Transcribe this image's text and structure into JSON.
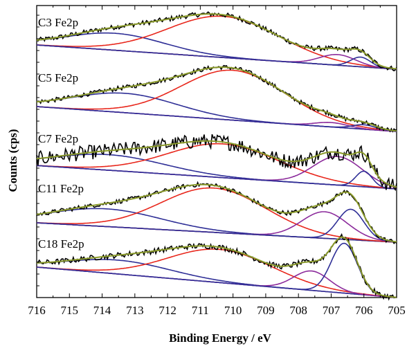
{
  "chart_data": {
    "type": "line",
    "xlabel": "Binding Energy / eV",
    "ylabel": "Counts (cps)",
    "xlim": [
      716,
      705
    ],
    "x_reversed": true,
    "x_ticks": [
      "716",
      "715",
      "714",
      "713",
      "712",
      "711",
      "710",
      "709",
      "708",
      "707",
      "706",
      "705"
    ],
    "y_tick_labels_shown": false,
    "grid": false,
    "legend": "none",
    "colors": {
      "raw": "#000000",
      "envelope": "#8a9a2a",
      "main_peak": "#e8261b",
      "satellite": "#2e2e96",
      "secondary": "#8b2a9b",
      "background_dark": "#7a1010",
      "background_purple": "#7b2a8a"
    },
    "panels": [
      {
        "label": "C3 Fe2p",
        "background": {
          "color": "background_dark",
          "y_start": 0.5,
          "y_end": 0.0
        },
        "components": [
          {
            "role": "satellite",
            "center": 713.6,
            "height": 0.35,
            "width": 1.5
          },
          {
            "role": "main_peak",
            "center": 710.3,
            "height": 0.85,
            "width": 1.7
          },
          {
            "role": "secondary",
            "center": 706.8,
            "height": 0.22,
            "width": 0.55
          },
          {
            "role": "satellite",
            "center": 706.1,
            "height": 0.2,
            "width": 0.3
          }
        ]
      },
      {
        "label": "C5 Fe2p",
        "background": {
          "color": "background_purple",
          "y_start": 0.45,
          "y_end": 0.0
        },
        "components": [
          {
            "role": "satellite",
            "center": 713.3,
            "height": 0.35,
            "width": 1.6
          },
          {
            "role": "main_peak",
            "center": 710.0,
            "height": 0.9,
            "width": 1.6
          },
          {
            "role": "secondary",
            "center": 707.0,
            "height": 0.08,
            "width": 0.5
          },
          {
            "role": "satellite",
            "center": 706.0,
            "height": 0.08,
            "width": 0.35
          }
        ]
      },
      {
        "label": "C7 Fe2p",
        "background": {
          "color": "background_purple",
          "y_start": 0.45,
          "y_end": 0.0
        },
        "components": [
          {
            "role": "satellite",
            "center": 713.8,
            "height": 0.3,
            "width": 1.7
          },
          {
            "role": "main_peak",
            "center": 710.3,
            "height": 0.65,
            "width": 1.7
          },
          {
            "role": "secondary",
            "center": 706.8,
            "height": 0.55,
            "width": 0.75
          },
          {
            "role": "satellite",
            "center": 706.0,
            "height": 0.3,
            "width": 0.25
          }
        ]
      },
      {
        "label": "C11 Fe2p",
        "background": {
          "color": "background_dark",
          "y_start": 0.35,
          "y_end": 0.0
        },
        "components": [
          {
            "role": "satellite",
            "center": 713.9,
            "height": 0.32,
            "width": 1.7
          },
          {
            "role": "main_peak",
            "center": 710.6,
            "height": 0.8,
            "width": 1.6
          },
          {
            "role": "secondary",
            "center": 707.2,
            "height": 0.48,
            "width": 0.7
          },
          {
            "role": "satellite",
            "center": 706.4,
            "height": 0.55,
            "width": 0.4
          }
        ]
      },
      {
        "label": "C18 Fe2p",
        "background": {
          "color": "background_purple",
          "y_start": 0.55,
          "y_end": 0.0
        },
        "components": [
          {
            "role": "satellite",
            "center": 713.5,
            "height": 0.25,
            "width": 1.6
          },
          {
            "role": "main_peak",
            "center": 710.4,
            "height": 0.6,
            "width": 1.6
          },
          {
            "role": "secondary",
            "center": 707.6,
            "height": 0.35,
            "width": 0.55
          },
          {
            "role": "satellite",
            "center": 706.6,
            "height": 0.9,
            "width": 0.4
          }
        ]
      }
    ]
  }
}
